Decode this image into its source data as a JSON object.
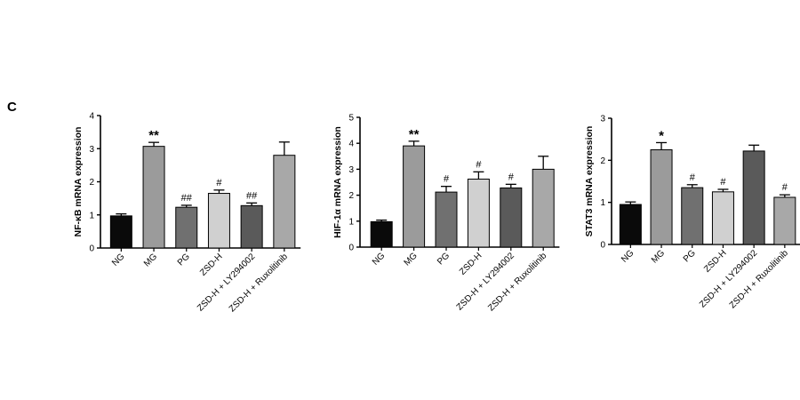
{
  "figure": {
    "panel_label": "C"
  },
  "chart_data": [
    {
      "type": "bar",
      "ylabel": "NF-κB mRNA expression",
      "ylim": [
        0,
        4
      ],
      "yticks": [
        "0",
        "1",
        "2",
        "3",
        "4"
      ],
      "categories": [
        "NG",
        "MG",
        "PG",
        "ZSD-H",
        "ZSD-H + LY294002",
        "ZSD-H + Ruxolitinib"
      ],
      "values": [
        0.97,
        3.07,
        1.23,
        1.65,
        1.28,
        2.8
      ],
      "errors": [
        0.06,
        0.12,
        0.06,
        0.1,
        0.08,
        0.4
      ],
      "annotations": [
        "",
        "**",
        "##",
        "#",
        "##",
        ""
      ],
      "colors": [
        "#0a0a0a",
        "#9b9b9b",
        "#707070",
        "#d0d0d0",
        "#5a5a5a",
        "#a8a8a8"
      ]
    },
    {
      "type": "bar",
      "ylabel": "HIF-1α mRNA expression",
      "ylim": [
        0,
        5
      ],
      "yticks": [
        "0",
        "1",
        "2",
        "3",
        "4",
        "5"
      ],
      "categories": [
        "NG",
        "MG",
        "PG",
        "ZSD-H",
        "ZSD-H + LY294002",
        "ZSD-H + Ruxolitinib"
      ],
      "values": [
        0.98,
        3.9,
        2.12,
        2.62,
        2.28,
        3.0
      ],
      "errors": [
        0.06,
        0.18,
        0.22,
        0.28,
        0.14,
        0.5
      ],
      "annotations": [
        "",
        "**",
        "#",
        "#",
        "#",
        ""
      ],
      "colors": [
        "#0a0a0a",
        "#9b9b9b",
        "#707070",
        "#d0d0d0",
        "#5a5a5a",
        "#a8a8a8"
      ]
    },
    {
      "type": "bar",
      "ylabel": "STAT3 mRNA expression",
      "ylim": [
        0,
        3
      ],
      "yticks": [
        "0",
        "1",
        "2",
        "3"
      ],
      "categories": [
        "NG",
        "MG",
        "PG",
        "ZSD-H",
        "ZSD-H + LY294002",
        "ZSD-H + Ruxolitinib"
      ],
      "values": [
        0.95,
        2.25,
        1.35,
        1.25,
        2.22,
        1.12
      ],
      "errors": [
        0.06,
        0.17,
        0.07,
        0.06,
        0.14,
        0.06
      ],
      "annotations": [
        "",
        "*",
        "#",
        "#",
        "",
        "#"
      ],
      "colors": [
        "#0a0a0a",
        "#9b9b9b",
        "#707070",
        "#d0d0d0",
        "#5a5a5a",
        "#a8a8a8"
      ]
    }
  ]
}
